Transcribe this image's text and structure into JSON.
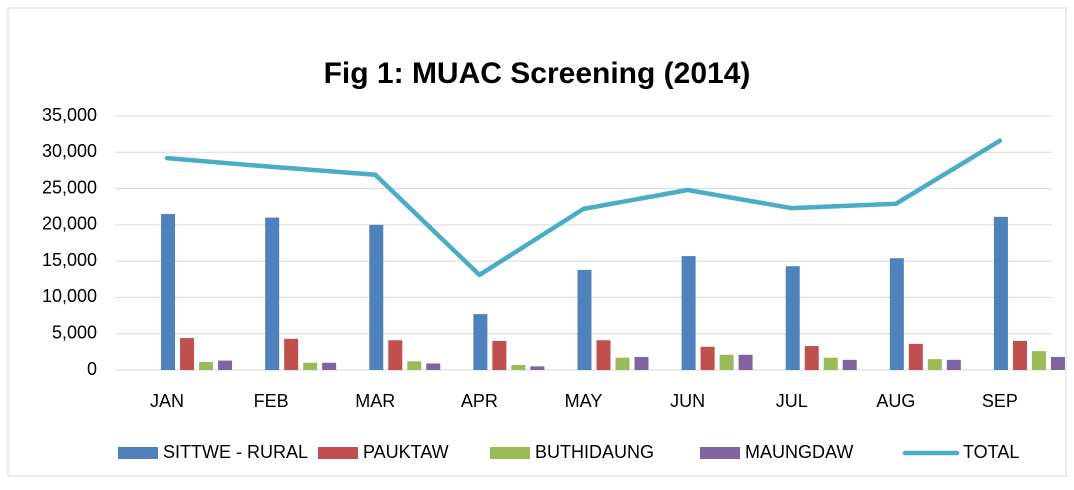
{
  "chart_data": {
    "type": "bar_line",
    "title": "Fig 1: MUAC Screening (2014)",
    "categories": [
      "JAN",
      "FEB",
      "MAR",
      "APR",
      "MAY",
      "JUN",
      "JUL",
      "AUG",
      "SEP"
    ],
    "series": [
      {
        "name": "SITTWE - RURAL",
        "color": "#4f81bd",
        "type": "bar",
        "values": [
          21500,
          21000,
          20000,
          7700,
          13800,
          15700,
          14300,
          15400,
          21100
        ]
      },
      {
        "name": "PAUKTAW",
        "color": "#c0504d",
        "type": "bar",
        "values": [
          4400,
          4300,
          4100,
          4000,
          4100,
          3200,
          3300,
          3600,
          4000
        ]
      },
      {
        "name": "BUTHIDAUNG",
        "color": "#9bbb59",
        "type": "bar",
        "values": [
          1100,
          1000,
          1200,
          700,
          1700,
          2100,
          1700,
          1500,
          2600
        ]
      },
      {
        "name": "MAUNGDAW",
        "color": "#8064a2",
        "type": "bar",
        "values": [
          1300,
          1000,
          900,
          500,
          1800,
          2100,
          1400,
          1400,
          1800
        ]
      },
      {
        "name": "TOTAL",
        "color": "#4bacc6",
        "type": "line",
        "values": [
          29200,
          28000,
          26900,
          13100,
          22200,
          24800,
          22300,
          22900,
          31600
        ]
      }
    ],
    "ylim": [
      0,
      35000
    ],
    "yticks": [
      0,
      {
        "value": 5000,
        "label": "5,000"
      },
      {
        "value": 10000,
        "label": "10,000"
      },
      {
        "value": 15000,
        "label": "15,000"
      },
      {
        "value": 20000,
        "label": "20,000"
      },
      {
        "value": 25000,
        "label": "25,000"
      },
      {
        "value": 30000,
        "label": "30,000"
      },
      {
        "value": 35000,
        "label": "35,000"
      }
    ],
    "grid": true,
    "legend": "bottom"
  }
}
